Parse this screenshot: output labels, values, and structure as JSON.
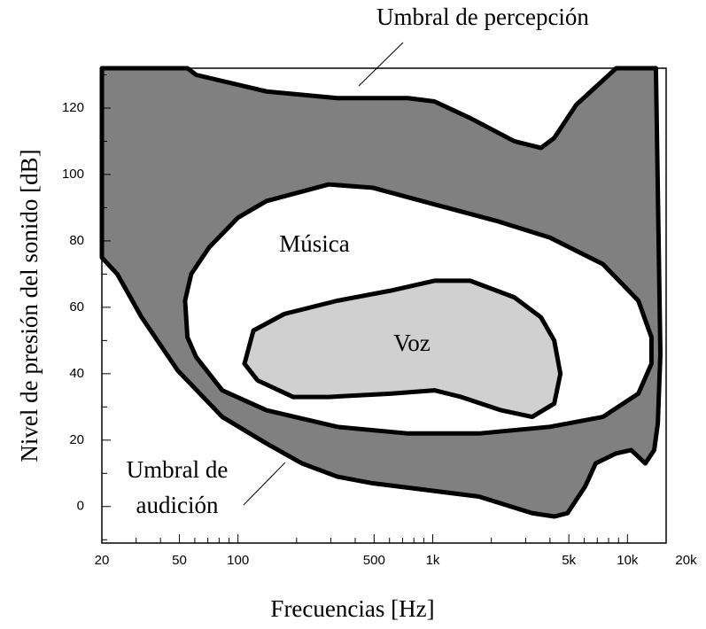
{
  "chart_data": {
    "type": "area",
    "xlabel": "Frecuencias [Hz]",
    "ylabel": "Nivel de presión del sonido [dB]",
    "xscale": "log",
    "xlim": [
      20,
      15800
    ],
    "ylim": [
      -11,
      132
    ],
    "xticks": [
      20,
      50,
      100,
      500,
      {
        "value": 1000,
        "label": "1k"
      },
      {
        "value": 5000,
        "label": "5k"
      },
      {
        "value": 10000,
        "label": "10k"
      },
      {
        "value": 20000,
        "label": "20k"
      }
    ],
    "xminorticks": [
      30,
      40,
      60,
      70,
      80,
      90,
      200,
      300,
      400,
      600,
      700,
      800,
      900,
      2000,
      3000,
      4000,
      6000,
      7000,
      8000,
      9000
    ],
    "yticks": [
      0,
      20,
      40,
      60,
      80,
      100,
      120
    ],
    "yminorticks": [
      -10,
      10,
      30,
      50,
      70,
      90,
      110,
      130
    ],
    "series": [
      {
        "color": "#808080",
        "x": [
          20,
          55,
          61,
          140,
          324,
          748,
          1020,
          1555,
          2625,
          3595,
          4207,
          5460,
          8750,
          14000,
          14760,
          14320,
          13720,
          12360,
          10450,
          8750,
          6870,
          6060,
          4920,
          4207,
          3240,
          1725,
          923,
          492,
          324,
          213,
          140,
          83,
          49,
          32,
          24,
          20
        ],
        "values": [
          132,
          132,
          130,
          125,
          123,
          123,
          122,
          117,
          110,
          108,
          111,
          121,
          132,
          132,
          46,
          25,
          17,
          13,
          17,
          16,
          13,
          6,
          -2,
          -3,
          -2,
          3,
          5,
          7,
          9,
          13,
          19,
          27,
          41,
          57,
          70,
          75
        ]
      },
      {
        "name": "Música",
        "color": "#ffffff",
        "x": [
          55,
          53.5,
          57.5,
          71,
          100,
          140,
          292,
          492,
          1020,
          2130,
          3990,
          7480,
          11370,
          13280,
          13280,
          11370,
          7480,
          3990,
          1725,
          748,
          324,
          140,
          83,
          61
        ],
        "values": [
          51,
          62,
          70,
          78,
          87,
          92,
          97,
          96,
          91,
          86,
          81,
          73,
          62,
          51,
          43,
          34,
          27,
          24,
          22,
          22,
          24,
          29,
          35,
          45
        ]
      },
      {
        "name": "Voz",
        "color": "#d0d0d0",
        "x": [
          108,
          120,
          173,
          324,
          606,
          1020,
          1555,
          2625,
          3595,
          4207,
          4525,
          4207,
          3240,
          2245,
          1400,
          1020,
          606,
          292,
          192,
          126
        ],
        "values": [
          43,
          53,
          58,
          62,
          65,
          68,
          68,
          63,
          57,
          50,
          40,
          31,
          27,
          29,
          33,
          35,
          34,
          33,
          33,
          38
        ]
      }
    ],
    "annotations": [
      [
        "Umbral de percepción"
      ],
      [
        "Umbral de",
        "audición"
      ]
    ]
  }
}
